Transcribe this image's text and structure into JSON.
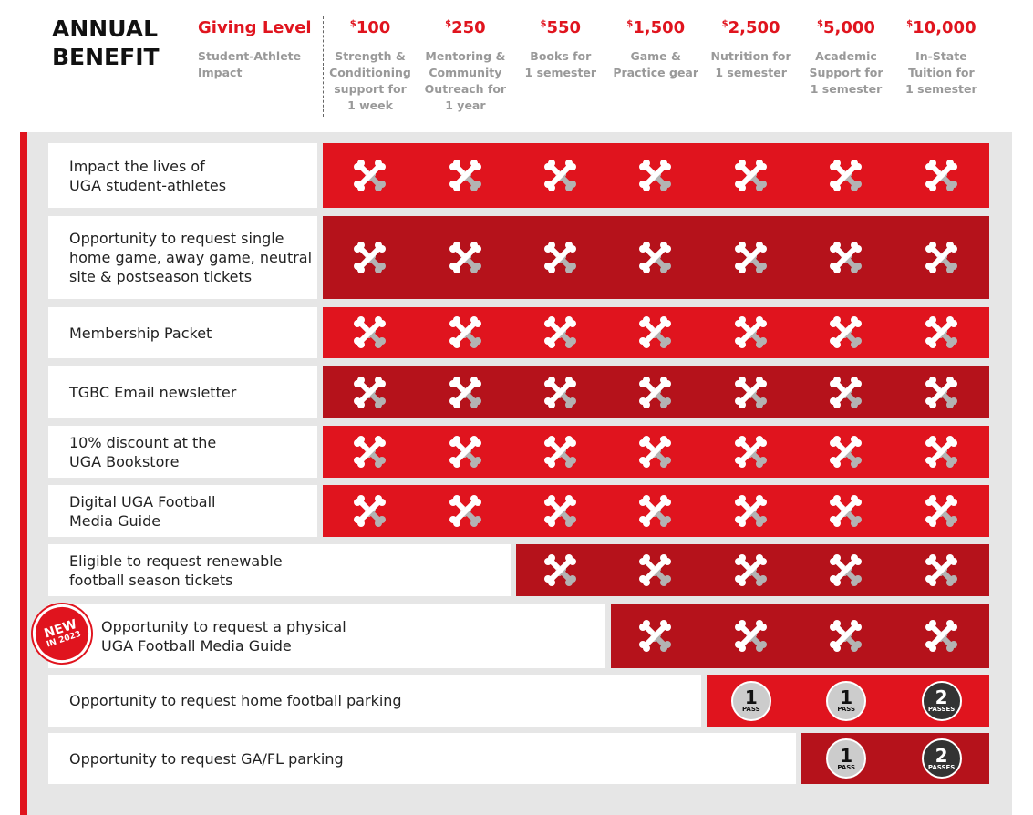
{
  "header": {
    "title": [
      "ANNUAL",
      "BENEFIT"
    ],
    "giving_level": {
      "label": "Giving Level",
      "sublabel": [
        "Student-Athlete",
        "Impact"
      ]
    }
  },
  "levels": [
    {
      "currency": "$",
      "amount": "100",
      "impact": [
        "Strength &",
        "Conditioning",
        "support for",
        "1 week"
      ]
    },
    {
      "currency": "$",
      "amount": "250",
      "impact": [
        "Mentoring &",
        "Community",
        "Outreach for",
        "1 year"
      ]
    },
    {
      "currency": "$",
      "amount": "550",
      "impact": [
        "Books for",
        "1 semester"
      ]
    },
    {
      "currency": "$",
      "amount": "1,500",
      "impact": [
        "Game &",
        "Practice gear"
      ]
    },
    {
      "currency": "$",
      "amount": "2,500",
      "impact": [
        "Nutrition for",
        "1 semester"
      ]
    },
    {
      "currency": "$",
      "amount": "5,000",
      "impact": [
        "Academic",
        "Support for",
        "1 semester"
      ]
    },
    {
      "currency": "$",
      "amount": "10,000",
      "impact": [
        "In-State",
        "Tuition for",
        "1 semester"
      ]
    }
  ],
  "badge": [
    "NEW",
    "IN 2023"
  ],
  "rows": [
    {
      "label": [
        "Impact the lives of",
        "UGA student-athletes"
      ],
      "cells": [
        true,
        true,
        true,
        true,
        true,
        true,
        true
      ]
    },
    {
      "label": [
        "Opportunity to request single",
        "home game, away game, neutral",
        "site & postseason tickets"
      ],
      "cells": [
        true,
        true,
        true,
        true,
        true,
        true,
        true
      ]
    },
    {
      "label": [
        "Membership Packet"
      ],
      "cells": [
        true,
        true,
        true,
        true,
        true,
        true,
        true
      ]
    },
    {
      "label": [
        "TGBC Email newsletter"
      ],
      "cells": [
        true,
        true,
        true,
        true,
        true,
        true,
        true
      ]
    },
    {
      "label": [
        "10% discount at the",
        "UGA Bookstore"
      ],
      "cells": [
        true,
        true,
        true,
        true,
        true,
        true,
        true
      ]
    },
    {
      "label": [
        "Digital UGA Football",
        "Media Guide"
      ],
      "cells": [
        true,
        true,
        true,
        true,
        true,
        true,
        true
      ]
    },
    {
      "label": [
        "Eligible to request renewable",
        "football season tickets"
      ],
      "cells": [
        null,
        null,
        true,
        true,
        true,
        true,
        true
      ]
    },
    {
      "label": [
        "Opportunity to request a physical",
        "UGA Football Media Guide"
      ],
      "cells": [
        null,
        null,
        null,
        true,
        true,
        true,
        true
      ]
    },
    {
      "label": [
        "Opportunity to request home football parking"
      ],
      "cells": [
        null,
        null,
        null,
        null,
        {
          "number": "1",
          "label": "PASS"
        },
        {
          "number": "1",
          "label": "PASS"
        },
        {
          "number": "2",
          "label": "PASSES"
        }
      ]
    },
    {
      "label": [
        "Opportunity to request GA/FL parking"
      ],
      "cells": [
        null,
        null,
        null,
        null,
        null,
        {
          "number": "1",
          "label": "PASS"
        },
        {
          "number": "2",
          "label": "PASSES"
        }
      ]
    }
  ]
}
